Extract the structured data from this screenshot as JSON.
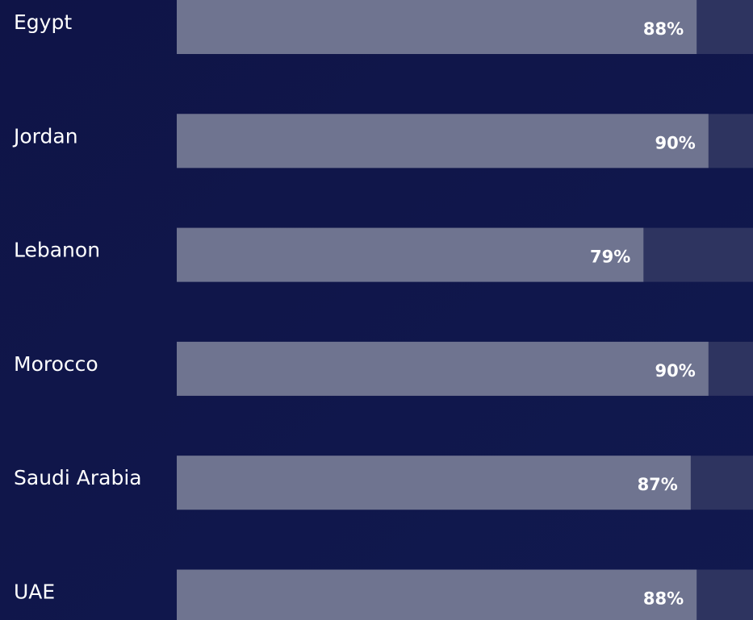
{
  "chart_data": {
    "type": "bar",
    "orientation": "horizontal",
    "categories": [
      "Egypt",
      "Jordan",
      "Lebanon",
      "Morocco",
      "Saudi Arabia",
      "UAE"
    ],
    "values": [
      88,
      90,
      79,
      90,
      87,
      88
    ],
    "value_labels": [
      "88%",
      "90%",
      "79%",
      "90%",
      "87%",
      "88%"
    ],
    "xlim": [
      0,
      100
    ],
    "color": "#6f7490",
    "track_color": "#2e3460"
  }
}
